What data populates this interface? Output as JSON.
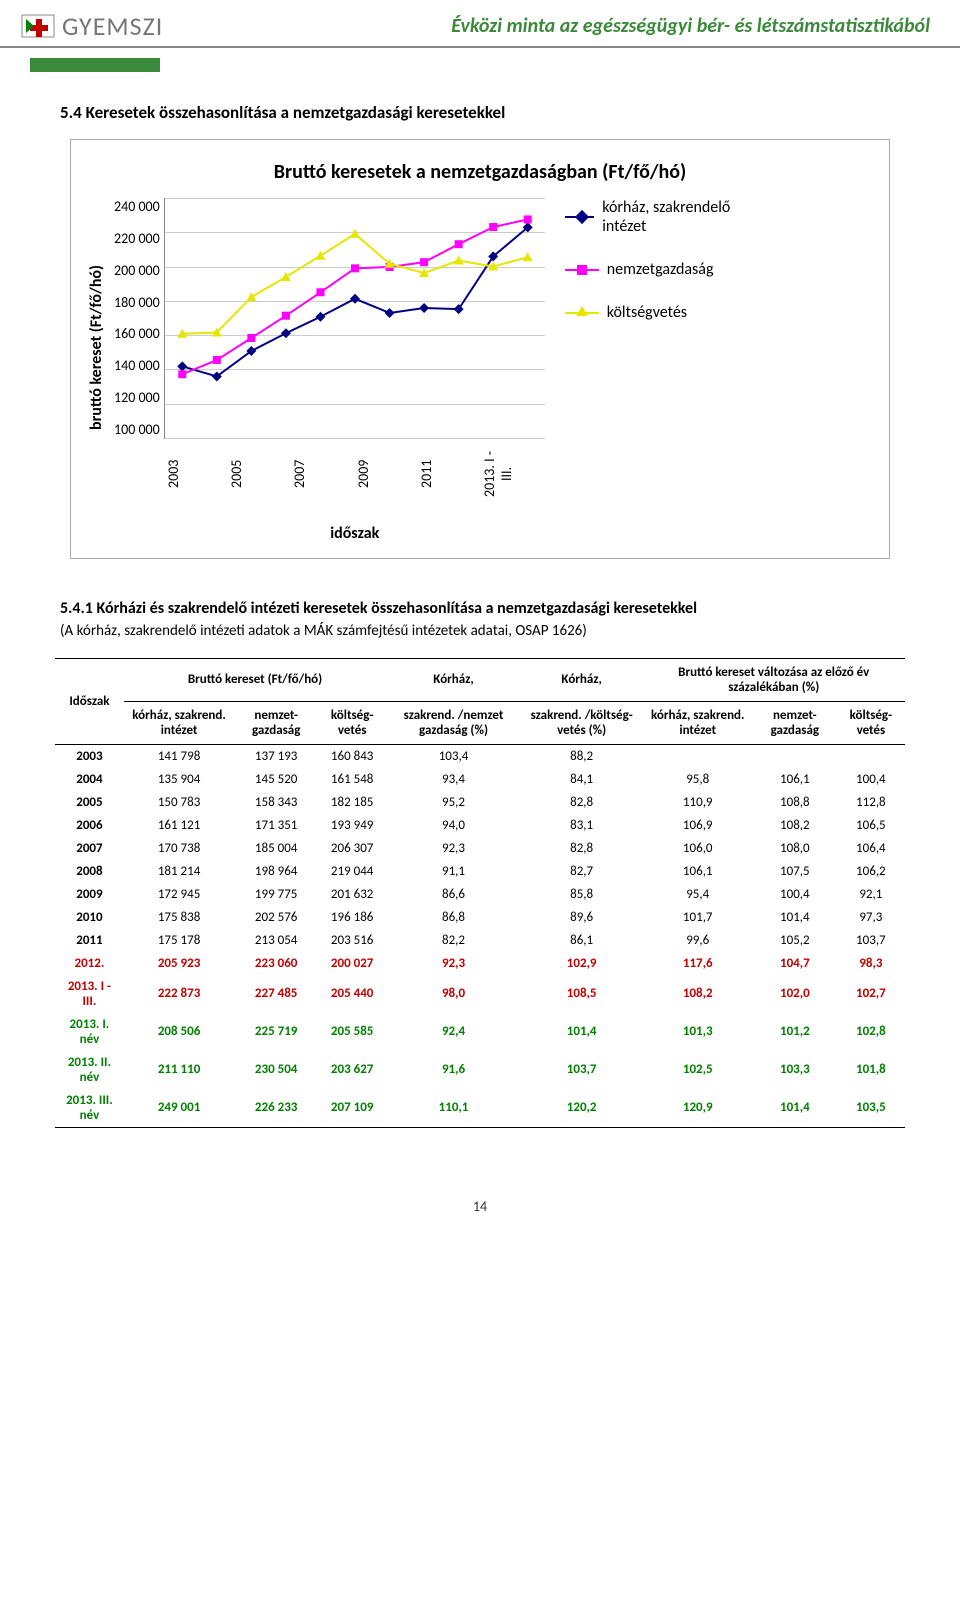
{
  "header": {
    "logo_text": "GYEMSZI",
    "doc_title": "Évközi minta az egészségügyi bér- és létszámstatisztikából"
  },
  "section_title": "5.4 Keresetek összehasonlítása a nemzetgazdasági keresetekkel",
  "chart": {
    "title": "Bruttó keresetek a nemzetgazdaságban (Ft/fő/hó)",
    "y_label": "bruttó kereset (Ft/fő/hó)",
    "x_label": "időszak",
    "y_min": 100000,
    "y_max": 240000,
    "y_step": 20000,
    "x_categories": [
      "2003",
      "2005",
      "2007",
      "2009",
      "2011",
      "2013. I -III."
    ],
    "series": [
      {
        "name": "kórház, szakrendelő intézet",
        "color": "#000080",
        "marker": "diamond",
        "values": [
          141798,
          135904,
          150783,
          161121,
          170738,
          181214,
          172945,
          175838,
          175178,
          205923,
          222873
        ]
      },
      {
        "name": "nemzetgazdaság",
        "color": "#ff00ff",
        "marker": "square",
        "values": [
          137193,
          145520,
          158343,
          171351,
          185004,
          198964,
          199775,
          202576,
          213054,
          223060,
          227485
        ]
      },
      {
        "name": "költségvetés",
        "color": "#e6e600",
        "marker": "triangle",
        "values": [
          160843,
          161548,
          182185,
          193949,
          206307,
          219044,
          201632,
          196186,
          203516,
          200027,
          205440
        ]
      }
    ]
  },
  "subsection_title": "5.4.1 Kórházi és szakrendelő intézeti keresetek összehasonlítása a nemzetgazdasági keresetekkel",
  "subsection_paren": "(A kórház, szakrendelő intézeti adatok a MÁK számfejtésű intézetek adatai, OSAP 1626)",
  "table": {
    "group_headers": [
      "Időszak",
      "Bruttó kereset (Ft/fő/hó)",
      "Kórház,",
      "Kórház,",
      "Bruttó kereset változása az előző év százalékában (%)"
    ],
    "sub_headers": [
      "",
      "kórház, szakrend. intézet",
      "nemzet-gazdaság",
      "költség-vetés",
      "szakrend. /nemzet gazdaság (%)",
      "szakrend. /költség-vetés (%)",
      "kórház, szakrend. intézet",
      "nemzet-gazdaság",
      "költség-vetés"
    ],
    "rows": [
      {
        "label": "2003",
        "cells": [
          "141 798",
          "137 193",
          "160 843",
          "103,4",
          "88,2",
          "",
          "",
          ""
        ]
      },
      {
        "label": "2004",
        "cells": [
          "135 904",
          "145 520",
          "161 548",
          "93,4",
          "84,1",
          "95,8",
          "106,1",
          "100,4"
        ]
      },
      {
        "label": "2005",
        "cells": [
          "150 783",
          "158 343",
          "182 185",
          "95,2",
          "82,8",
          "110,9",
          "108,8",
          "112,8"
        ]
      },
      {
        "label": "2006",
        "cells": [
          "161 121",
          "171 351",
          "193 949",
          "94,0",
          "83,1",
          "106,9",
          "108,2",
          "106,5"
        ]
      },
      {
        "label": "2007",
        "cells": [
          "170 738",
          "185 004",
          "206 307",
          "92,3",
          "82,8",
          "106,0",
          "108,0",
          "106,4"
        ]
      },
      {
        "label": "2008",
        "cells": [
          "181 214",
          "198 964",
          "219 044",
          "91,1",
          "82,7",
          "106,1",
          "107,5",
          "106,2"
        ]
      },
      {
        "label": "2009",
        "cells": [
          "172 945",
          "199 775",
          "201 632",
          "86,6",
          "85,8",
          "95,4",
          "100,4",
          "92,1"
        ]
      },
      {
        "label": "2010",
        "cells": [
          "175 838",
          "202 576",
          "196 186",
          "86,8",
          "89,6",
          "101,7",
          "101,4",
          "97,3"
        ]
      },
      {
        "label": "2011",
        "cells": [
          "175 178",
          "213 054",
          "203 516",
          "82,2",
          "86,1",
          "99,6",
          "105,2",
          "103,7"
        ]
      },
      {
        "label": "2012.",
        "class": "red",
        "cells": [
          "205 923",
          "223 060",
          "200 027",
          "92,3",
          "102,9",
          "117,6",
          "104,7",
          "98,3"
        ]
      },
      {
        "label": "2013. I - III.",
        "class": "red",
        "cells": [
          "222 873",
          "227 485",
          "205 440",
          "98,0",
          "108,5",
          "108,2",
          "102,0",
          "102,7"
        ]
      },
      {
        "label": "2013. I. név",
        "class": "green",
        "cells": [
          "208 506",
          "225 719",
          "205 585",
          "92,4",
          "101,4",
          "101,3",
          "101,2",
          "102,8"
        ]
      },
      {
        "label": "2013. II. név",
        "class": "green",
        "cells": [
          "211 110",
          "230 504",
          "203 627",
          "91,6",
          "103,7",
          "102,5",
          "103,3",
          "101,8"
        ]
      },
      {
        "label": "2013. III. név",
        "class": "green",
        "cells": [
          "249 001",
          "226 233",
          "207 109",
          "110,1",
          "120,2",
          "120,9",
          "101,4",
          "103,5"
        ]
      }
    ]
  },
  "page_number": "14"
}
